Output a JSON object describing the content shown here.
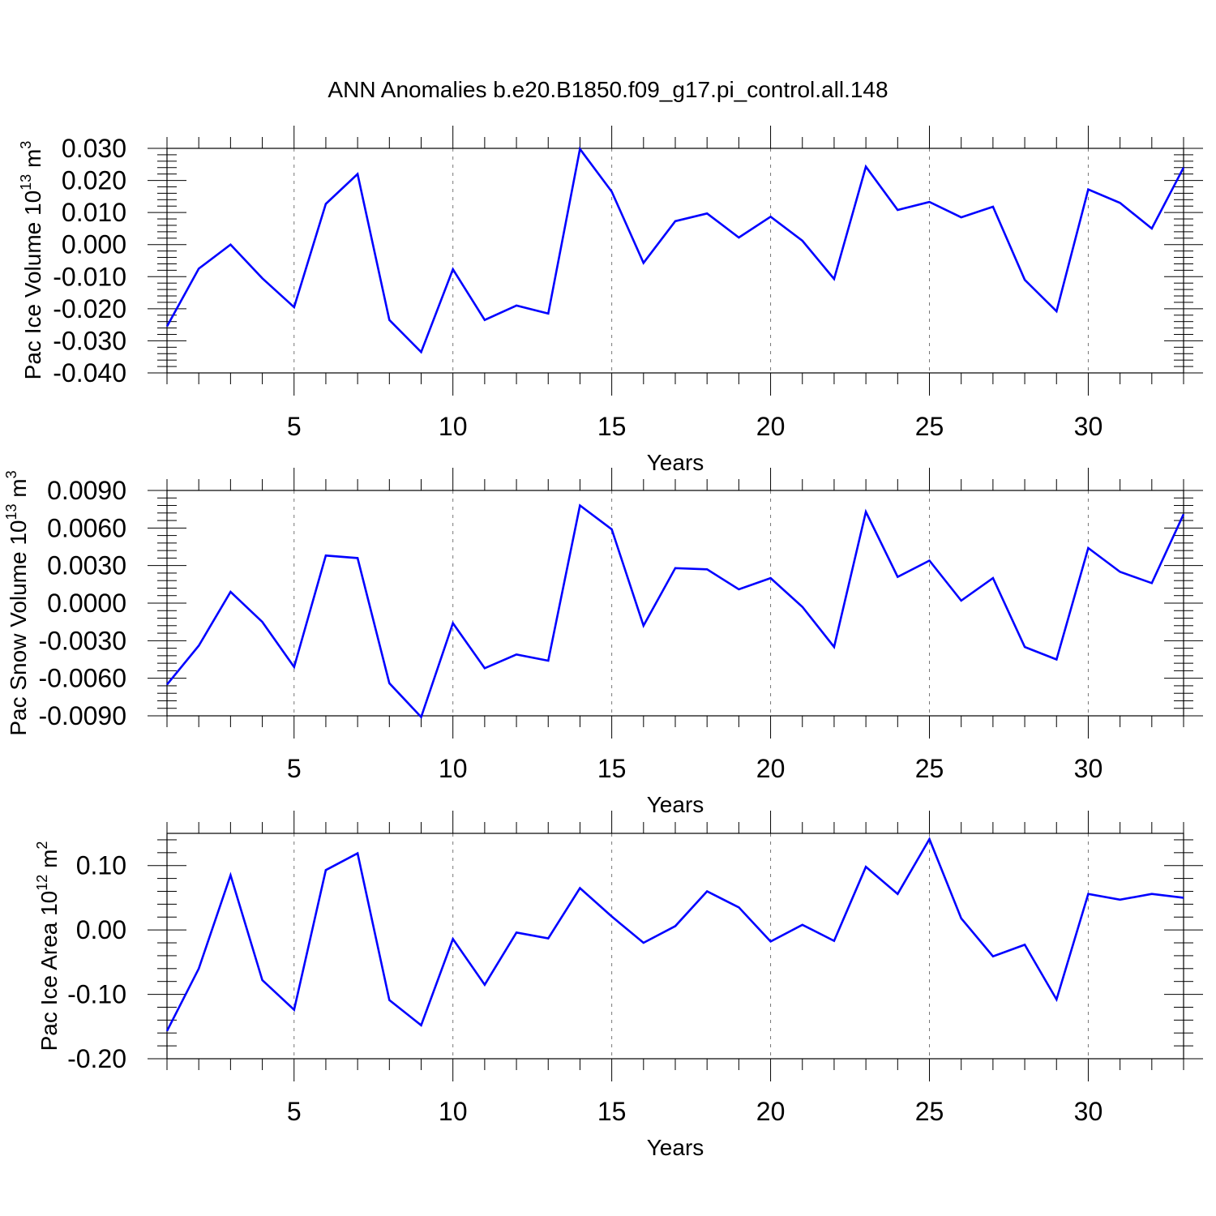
{
  "figure": {
    "title": "ANN Anomalies b.e20.B1850.f09_g17.pi_control.all.148",
    "line_color": "#0000ff"
  },
  "chart_data": [
    {
      "type": "line",
      "ylabel": "Pac Ice Volume 10",
      "ylabel_exp": "13",
      "ylabel_unit": " m",
      "ylabel_unit_exp": "3",
      "xlabel": "Years",
      "xlim": [
        1,
        33
      ],
      "ylim": [
        -0.04,
        0.03
      ],
      "yticks": [
        -0.04,
        -0.03,
        -0.02,
        -0.01,
        0.0,
        0.01,
        0.02,
        0.03
      ],
      "yticklabels": [
        "-0.040",
        "-0.030",
        "-0.020",
        "-0.010",
        "0.000",
        "0.010",
        "0.020",
        "0.030"
      ],
      "xticks": [
        5,
        10,
        15,
        20,
        25,
        30
      ],
      "xticklabels": [
        "5",
        "10",
        "15",
        "20",
        "25",
        "30"
      ],
      "grid": "vertical dashed at major x ticks",
      "x": [
        1,
        2,
        3,
        4,
        5,
        6,
        7,
        8,
        9,
        10,
        11,
        12,
        13,
        14,
        15,
        16,
        17,
        18,
        19,
        20,
        21,
        22,
        23,
        24,
        25,
        26,
        27,
        28,
        29,
        30,
        31,
        32,
        33
      ],
      "values": [
        -0.0255,
        -0.0075,
        0.0,
        -0.0105,
        -0.0195,
        0.0127,
        0.022,
        -0.0235,
        -0.0335,
        -0.0077,
        -0.0235,
        -0.019,
        -0.0215,
        0.0298,
        0.0165,
        -0.0057,
        0.0073,
        0.0097,
        0.0022,
        0.0087,
        0.0012,
        -0.0107,
        0.0243,
        0.0108,
        0.0133,
        0.0085,
        0.0118,
        -0.011,
        -0.0208,
        0.0172,
        0.013,
        0.005,
        0.024
      ]
    },
    {
      "type": "line",
      "ylabel": "Pac Snow Volume 10",
      "ylabel_exp": "13",
      "ylabel_unit": " m",
      "ylabel_unit_exp": "3",
      "xlabel": "Years",
      "xlim": [
        1,
        33
      ],
      "ylim": [
        -0.009,
        0.009
      ],
      "yticks": [
        -0.009,
        -0.006,
        -0.003,
        0.0,
        0.003,
        0.006,
        0.009
      ],
      "yticklabels": [
        "-0.0090",
        "-0.0060",
        "-0.0030",
        "0.0000",
        "0.0030",
        "0.0060",
        "0.0090"
      ],
      "xticks": [
        5,
        10,
        15,
        20,
        25,
        30
      ],
      "xticklabels": [
        "5",
        "10",
        "15",
        "20",
        "25",
        "30"
      ],
      "grid": "vertical dashed at major x ticks",
      "x": [
        1,
        2,
        3,
        4,
        5,
        6,
        7,
        8,
        9,
        10,
        11,
        12,
        13,
        14,
        15,
        16,
        17,
        18,
        19,
        20,
        21,
        22,
        23,
        24,
        25,
        26,
        27,
        28,
        29,
        30,
        31,
        32,
        33
      ],
      "values": [
        -0.0065,
        -0.0034,
        0.0009,
        -0.0015,
        -0.0051,
        0.0038,
        0.0036,
        -0.0064,
        -0.0091,
        -0.0016,
        -0.0052,
        -0.0041,
        -0.0046,
        0.0078,
        0.0059,
        -0.0018,
        0.0028,
        0.0027,
        0.0011,
        0.002,
        -0.0003,
        -0.0035,
        0.0073,
        0.0021,
        0.0034,
        0.0002,
        0.002,
        -0.0035,
        -0.0045,
        0.0044,
        0.0025,
        0.0016,
        0.0071
      ]
    },
    {
      "type": "line",
      "ylabel": "Pac Ice Area 10",
      "ylabel_exp": "12",
      "ylabel_unit": " m",
      "ylabel_unit_exp": "2",
      "xlabel": "Years",
      "xlim": [
        1,
        33
      ],
      "ylim": [
        -0.2,
        0.15
      ],
      "yticks": [
        -0.2,
        -0.1,
        0.0,
        0.1
      ],
      "yticklabels": [
        "-0.20",
        "-0.10",
        "0.00",
        "0.10"
      ],
      "xticks": [
        5,
        10,
        15,
        20,
        25,
        30
      ],
      "xticklabels": [
        "5",
        "10",
        "15",
        "20",
        "25",
        "30"
      ],
      "grid": "vertical dashed at major x ticks",
      "x": [
        1,
        2,
        3,
        4,
        5,
        6,
        7,
        8,
        9,
        10,
        11,
        12,
        13,
        14,
        15,
        16,
        17,
        18,
        19,
        20,
        21,
        22,
        23,
        24,
        25,
        26,
        27,
        28,
        29,
        30,
        31,
        32,
        33
      ],
      "values": [
        -0.157,
        -0.06,
        0.085,
        -0.078,
        -0.124,
        0.093,
        0.119,
        -0.109,
        -0.148,
        -0.014,
        -0.085,
        -0.004,
        -0.013,
        0.065,
        0.021,
        -0.02,
        0.006,
        0.06,
        0.035,
        -0.018,
        0.008,
        -0.017,
        0.098,
        0.056,
        0.141,
        0.018,
        -0.041,
        -0.023,
        -0.108,
        0.056,
        0.047,
        0.056,
        0.05
      ]
    }
  ]
}
